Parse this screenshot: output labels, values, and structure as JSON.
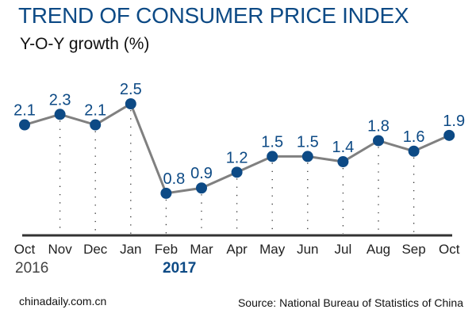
{
  "chart_data": {
    "type": "line",
    "title": "TREND OF CONSUMER PRICE INDEX",
    "ylabel": "Y-O-Y growth (%)",
    "categories": [
      "Oct",
      "Nov",
      "Dec",
      "Jan",
      "Feb",
      "Mar",
      "Apr",
      "May",
      "Jun",
      "Jul",
      "Aug",
      "Sep",
      "Oct"
    ],
    "year_labels": {
      "start": "2016",
      "mid": "2017"
    },
    "values": [
      2.1,
      2.3,
      2.1,
      2.5,
      0.8,
      0.9,
      1.2,
      1.5,
      1.5,
      1.4,
      1.8,
      1.6,
      1.9
    ],
    "data_labels": [
      "2.1",
      "2.3",
      "2.1",
      "2.5",
      "0.8",
      "0.9",
      "1.2",
      "1.5",
      "1.5",
      "1.4",
      "1.8",
      "1.6",
      "1.9"
    ],
    "ylim": [
      0,
      2.5
    ],
    "grid": false,
    "colors": {
      "line": "#808080",
      "marker": "#0d4a85",
      "label": "#0d4a85"
    }
  },
  "footer": {
    "credit": "chinadaily.com.cn",
    "source": "Source: National Bureau of Statistics of China"
  }
}
